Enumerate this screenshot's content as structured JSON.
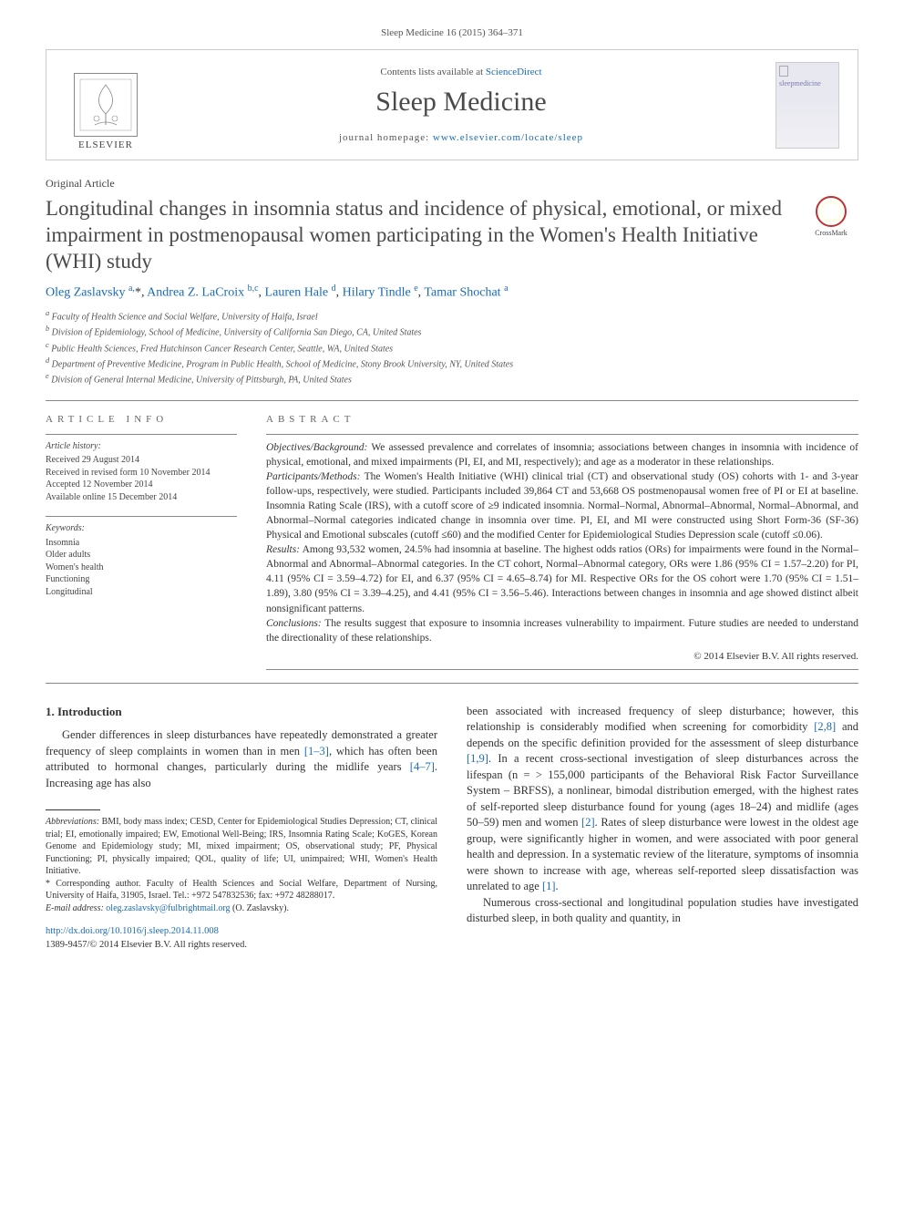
{
  "header": {
    "citation": "Sleep Medicine 16 (2015) 364–371",
    "contents_prefix": "Contents lists available at ",
    "contents_link": "ScienceDirect",
    "journal": "Sleep Medicine",
    "homepage_prefix": "journal homepage: ",
    "homepage_url": "www.elsevier.com/locate/sleep",
    "elsevier_label": "ELSEVIER",
    "cover_label": "sleepmedicine"
  },
  "crossmark": {
    "label": "CrossMark"
  },
  "article": {
    "type": "Original Article",
    "title": "Longitudinal changes in insomnia status and incidence of physical, emotional, or mixed impairment in postmenopausal women participating in the Women's Health Initiative (WHI) study",
    "authors_html": "Oleg Zaslavsky <sup>a,</sup>*, Andrea Z. LaCroix <sup>b,c</sup>, Lauren Hale <sup>d</sup>, Hilary Tindle <sup>e</sup>, Tamar Shochat <sup>a</sup>",
    "affiliations": [
      "a Faculty of Health Science and Social Welfare, University of Haifa, Israel",
      "b Division of Epidemiology, School of Medicine, University of California San Diego, CA, United States",
      "c Public Health Sciences, Fred Hutchinson Cancer Research Center, Seattle, WA, United States",
      "d Department of Preventive Medicine, Program in Public Health, School of Medicine, Stony Brook University, NY, United States",
      "e Division of General Internal Medicine, University of Pittsburgh, PA, United States"
    ]
  },
  "info": {
    "heading": "ARTICLE INFO",
    "history_label": "Article history:",
    "history": [
      "Received 29 August 2014",
      "Received in revised form 10 November 2014",
      "Accepted 12 November 2014",
      "Available online 15 December 2014"
    ],
    "keywords_label": "Keywords:",
    "keywords": [
      "Insomnia",
      "Older adults",
      "Women's health",
      "Functioning",
      "Longitudinal"
    ]
  },
  "abstract": {
    "heading": "ABSTRACT",
    "sections": [
      {
        "label": "Objectives/Background:",
        "text": " We assessed prevalence and correlates of insomnia; associations between changes in insomnia with incidence of physical, emotional, and mixed impairments (PI, EI, and MI, respectively); and age as a moderator in these relationships."
      },
      {
        "label": "Participants/Methods:",
        "text": " The Women's Health Initiative (WHI) clinical trial (CT) and observational study (OS) cohorts with 1- and 3-year follow-ups, respectively, were studied. Participants included 39,864 CT and 53,668 OS postmenopausal women free of PI or EI at baseline. Insomnia Rating Scale (IRS), with a cutoff score of ≥9 indicated insomnia. Normal–Normal, Abnormal–Abnormal, Normal–Abnormal, and Abnormal–Normal categories indicated change in insomnia over time. PI, EI, and MI were constructed using Short Form-36 (SF-36) Physical and Emotional subscales (cutoff ≤60) and the modified Center for Epidemiological Studies Depression scale (cutoff ≤0.06)."
      },
      {
        "label": "Results:",
        "text": " Among 93,532 women, 24.5% had insomnia at baseline. The highest odds ratios (ORs) for impairments were found in the Normal–Abnormal and Abnormal–Abnormal categories. In the CT cohort, Normal–Abnormal category, ORs were 1.86 (95% CI = 1.57–2.20) for PI, 4.11 (95% CI = 3.59–4.72) for EI, and 6.37 (95% CI = 4.65–8.74) for MI. Respective ORs for the OS cohort were 1.70 (95% CI = 1.51–1.89), 3.80 (95% CI = 3.39–4.25), and 4.41 (95% CI = 3.56–5.46). Interactions between changes in insomnia and age showed distinct albeit nonsignificant patterns."
      },
      {
        "label": "Conclusions:",
        "text": " The results suggest that exposure to insomnia increases vulnerability to impairment. Future studies are needed to understand the directionality of these relationships."
      }
    ],
    "copyright": "© 2014 Elsevier B.V. All rights reserved."
  },
  "body": {
    "section_heading": "1. Introduction",
    "col1_p1": "Gender differences in sleep disturbances have repeatedly demonstrated a greater frequency of sleep complaints in women than in men [1–3], which has often been attributed to hormonal changes, particularly during the midlife years [4–7]. Increasing age has also",
    "col2_p1": "been associated with increased frequency of sleep disturbance; however, this relationship is considerably modified when screening for comorbidity [2,8] and depends on the specific definition provided for the assessment of sleep disturbance [1,9]. In a recent cross-sectional investigation of sleep disturbances across the lifespan (n = > 155,000 participants of the Behavioral Risk Factor Surveillance System – BRFSS), a nonlinear, bimodal distribution emerged, with the highest rates of self-reported sleep disturbance found for young (ages 18–24) and midlife (ages 50–59) men and women [2]. Rates of sleep disturbance were lowest in the oldest age group, were significantly higher in women, and were associated with poor general health and depression. In a systematic review of the literature, symptoms of insomnia were shown to increase with age, whereas self-reported sleep dissatisfaction was unrelated to age [1].",
    "col2_p2": "Numerous cross-sectional and longitudinal population studies have investigated disturbed sleep, in both quality and quantity, in"
  },
  "footnotes": {
    "abbrev_label": "Abbreviations:",
    "abbrev_text": " BMI, body mass index; CESD, Center for Epidemiological Studies Depression; CT, clinical trial; EI, emotionally impaired; EW, Emotional Well-Being; IRS, Insomnia Rating Scale; KoGES, Korean Genome and Epidemiology study; MI, mixed impairment; OS, observational study; PF, Physical Functioning; PI, physically impaired; QOL, quality of life; UI, unimpaired; WHI, Women's Health Initiative.",
    "corr_label": "* Corresponding author.",
    "corr_text": " Faculty of Health Sciences and Social Welfare, Department of Nursing, University of Haifa, 31905, Israel. Tel.: +972 547832536; fax: +972 48288017.",
    "email_label": "E-mail address: ",
    "email": "oleg.zaslavsky@fulbrightmail.org",
    "email_suffix": " (O. Zaslavsky)."
  },
  "footer": {
    "doi": "http://dx.doi.org/10.1016/j.sleep.2014.11.008",
    "issn": "1389-9457/© 2014 Elsevier B.V. All rights reserved."
  },
  "colors": {
    "link": "#1a6bb8",
    "text": "#333333",
    "muted": "#555555",
    "rule": "#888888"
  }
}
